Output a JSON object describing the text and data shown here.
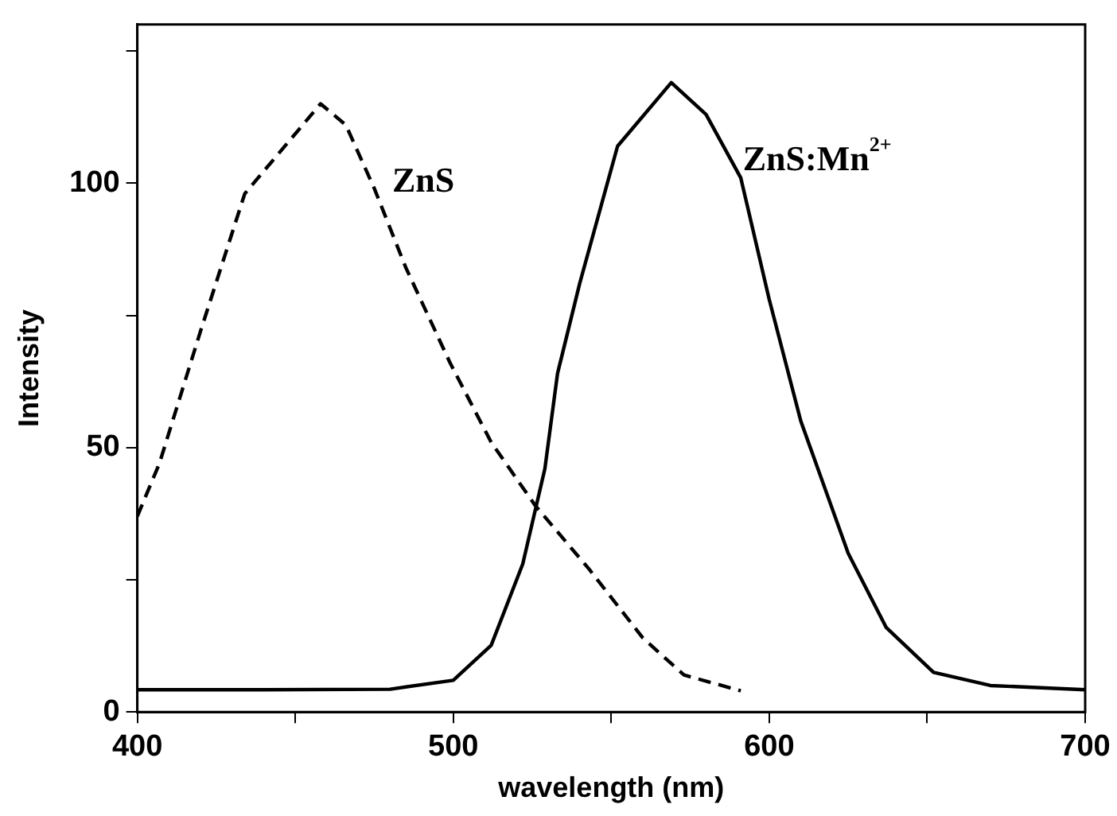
{
  "chart_data": {
    "type": "line",
    "xlabel": "wavelength (nm)",
    "ylabel": "Intensity",
    "xlim": [
      400,
      700
    ],
    "xticks": [
      400,
      {
        "value": 450,
        "label": null
      },
      500,
      {
        "value": 550,
        "label": null
      },
      600,
      {
        "value": 650,
        "label": null
      },
      700
    ],
    "ylim": [
      0,
      130
    ],
    "yticks": [
      0,
      {
        "value": 25,
        "label": null
      },
      50,
      {
        "value": 75,
        "label": null
      },
      100,
      {
        "value": 125,
        "label": null
      }
    ],
    "grid": false,
    "legend": false,
    "marker": "none",
    "series": [
      {
        "name": "ZnS",
        "color": "#000000",
        "line_style": "dashed",
        "x": [
          400,
          407,
          420,
          434,
          458,
          466,
          475,
          485,
          499,
          512,
          526,
          543,
          560,
          573,
          591
        ],
        "values": [
          37,
          47,
          72,
          98,
          115,
          111,
          99,
          84,
          66,
          51,
          39,
          27,
          14,
          7,
          4
        ]
      },
      {
        "name": "ZnS:Mn$^{2+}$",
        "color": "#000000",
        "line_style": "solid",
        "x": [
          400,
          440,
          480,
          500,
          512,
          522,
          529,
          533,
          540,
          552,
          569,
          580,
          591,
          600,
          610,
          625,
          637,
          652,
          670,
          700
        ],
        "values": [
          4.2,
          4.2,
          4.3,
          6,
          12.6,
          28,
          46,
          64,
          81,
          107,
          119,
          113,
          101,
          78,
          55,
          30,
          16,
          7.5,
          5,
          4.2
        ]
      }
    ]
  }
}
